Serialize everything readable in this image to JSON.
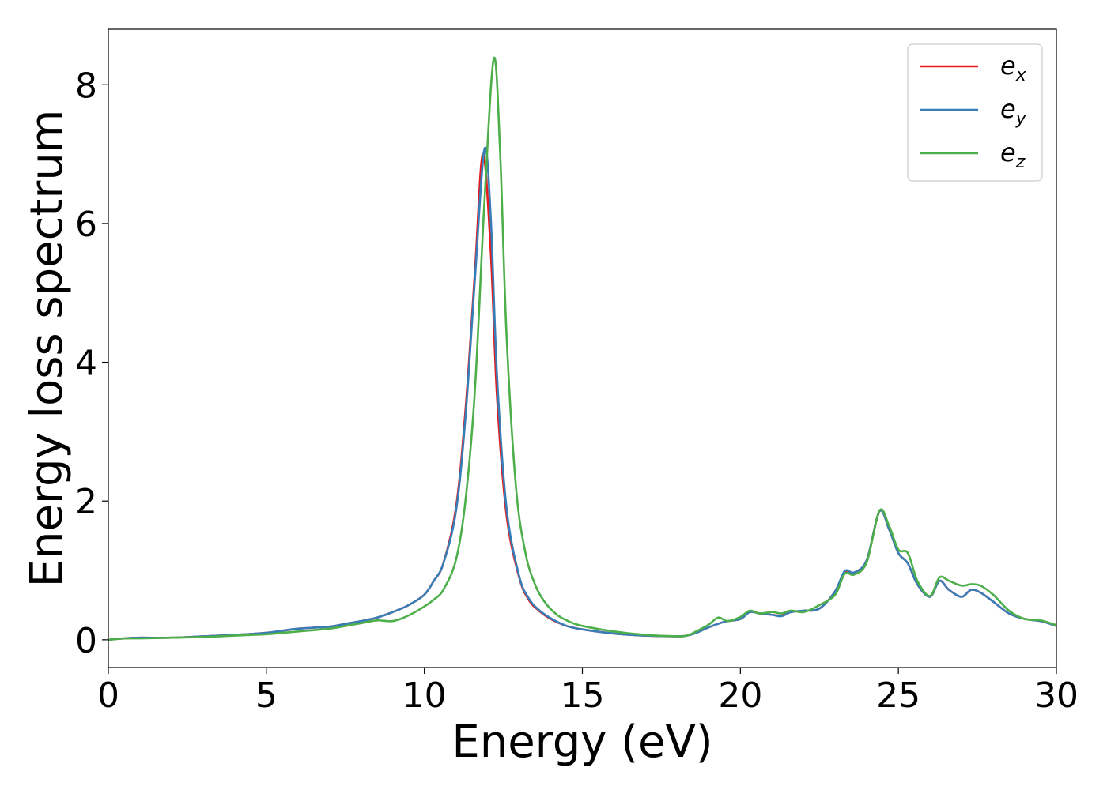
{
  "chart_data": {
    "type": "line",
    "xlabel": "Energy (eV)",
    "ylabel": "Energy loss spectrum",
    "xlim": [
      0,
      30
    ],
    "ylim": [
      -0.4,
      8.8
    ],
    "xticks": [
      0,
      5,
      10,
      15,
      20,
      25,
      30
    ],
    "xtick_labels": [
      "0",
      "5",
      "10",
      "15",
      "20",
      "25",
      "30"
    ],
    "yticks": [
      0,
      2,
      4,
      6,
      8
    ],
    "ytick_labels": [
      "0",
      "2",
      "4",
      "6",
      "8"
    ],
    "grid": false,
    "legend_position": "top-right",
    "series": [
      {
        "name": "e_x",
        "label_main": "e",
        "label_sub": "x",
        "color": "#e41a1c",
        "x": [
          0,
          0.5,
          1,
          2,
          3,
          4,
          5,
          5.5,
          6,
          7,
          7.5,
          8,
          8.5,
          9,
          9.5,
          10,
          10.3,
          10.6,
          11,
          11.3,
          11.6,
          11.85,
          12.1,
          12.3,
          12.6,
          13,
          13.3,
          13.6,
          14,
          14.5,
          15,
          16,
          17,
          18,
          18.3,
          18.6,
          19,
          19.5,
          20,
          20.3,
          20.6,
          21,
          21.3,
          21.6,
          22,
          22.5,
          23,
          23.3,
          23.6,
          24,
          24.4,
          24.7,
          25,
          25.3,
          25.6,
          26,
          26.3,
          26.6,
          27,
          27.3,
          27.6,
          28,
          28.5,
          29,
          29.5,
          30
        ],
        "y": [
          0.0,
          0.02,
          0.03,
          0.03,
          0.05,
          0.07,
          0.1,
          0.13,
          0.16,
          0.19,
          0.23,
          0.27,
          0.32,
          0.4,
          0.5,
          0.65,
          0.85,
          1.1,
          1.9,
          3.3,
          5.3,
          7.0,
          5.6,
          3.5,
          1.8,
          0.9,
          0.58,
          0.43,
          0.3,
          0.2,
          0.15,
          0.09,
          0.06,
          0.05,
          0.06,
          0.1,
          0.18,
          0.26,
          0.3,
          0.4,
          0.38,
          0.36,
          0.35,
          0.4,
          0.42,
          0.45,
          0.7,
          0.98,
          0.97,
          1.15,
          1.85,
          1.6,
          1.25,
          1.1,
          0.8,
          0.62,
          0.85,
          0.72,
          0.62,
          0.72,
          0.68,
          0.55,
          0.38,
          0.3,
          0.27,
          0.2
        ]
      },
      {
        "name": "e_y",
        "label_main": "e",
        "label_sub": "y",
        "color": "#377eb8",
        "x": [
          0,
          0.5,
          1,
          2,
          3,
          4,
          5,
          5.5,
          6,
          7,
          7.5,
          8,
          8.5,
          9,
          9.5,
          10,
          10.3,
          10.6,
          11,
          11.3,
          11.6,
          11.9,
          12.1,
          12.3,
          12.6,
          13,
          13.3,
          13.6,
          14,
          14.5,
          15,
          16,
          17,
          18,
          18.3,
          18.6,
          19,
          19.5,
          20,
          20.3,
          20.6,
          21,
          21.3,
          21.6,
          22,
          22.5,
          23,
          23.3,
          23.6,
          24,
          24.4,
          24.7,
          25,
          25.3,
          25.6,
          26,
          26.3,
          26.6,
          27,
          27.3,
          27.6,
          28,
          28.5,
          29,
          29.5,
          30
        ],
        "y": [
          0.0,
          0.02,
          0.03,
          0.03,
          0.05,
          0.07,
          0.1,
          0.13,
          0.16,
          0.19,
          0.23,
          0.27,
          0.32,
          0.4,
          0.5,
          0.65,
          0.85,
          1.1,
          1.85,
          3.2,
          5.2,
          7.07,
          6.1,
          3.8,
          1.9,
          0.92,
          0.6,
          0.44,
          0.31,
          0.2,
          0.15,
          0.09,
          0.06,
          0.05,
          0.06,
          0.1,
          0.18,
          0.26,
          0.3,
          0.4,
          0.38,
          0.36,
          0.34,
          0.4,
          0.42,
          0.45,
          0.7,
          0.99,
          0.97,
          1.15,
          1.85,
          1.6,
          1.25,
          1.1,
          0.8,
          0.62,
          0.85,
          0.72,
          0.62,
          0.72,
          0.68,
          0.55,
          0.38,
          0.3,
          0.27,
          0.2
        ]
      },
      {
        "name": "e_z",
        "label_main": "e",
        "label_sub": "z",
        "color": "#4daf4a",
        "x": [
          0,
          0.5,
          1,
          2,
          3,
          4,
          5,
          5.5,
          6,
          7,
          7.5,
          8,
          8.5,
          9,
          9.5,
          10,
          10.3,
          10.6,
          11,
          11.3,
          11.6,
          11.9,
          12.2,
          12.4,
          12.6,
          12.9,
          13.2,
          13.5,
          13.8,
          14.2,
          14.6,
          15,
          16,
          17,
          18,
          18.3,
          18.6,
          19,
          19.3,
          19.6,
          20,
          20.3,
          20.6,
          21,
          21.3,
          21.6,
          22,
          22.5,
          23,
          23.3,
          23.6,
          24,
          24.4,
          24.7,
          25,
          25.3,
          25.6,
          26,
          26.3,
          26.6,
          27,
          27.3,
          27.6,
          28,
          28.5,
          29,
          29.5,
          30
        ],
        "y": [
          0.0,
          0.02,
          0.02,
          0.03,
          0.04,
          0.06,
          0.08,
          0.1,
          0.12,
          0.16,
          0.2,
          0.24,
          0.28,
          0.27,
          0.35,
          0.48,
          0.58,
          0.72,
          1.15,
          2.0,
          3.6,
          6.3,
          8.38,
          7.0,
          4.4,
          2.2,
          1.25,
          0.8,
          0.55,
          0.36,
          0.26,
          0.2,
          0.12,
          0.07,
          0.05,
          0.06,
          0.12,
          0.22,
          0.32,
          0.27,
          0.33,
          0.42,
          0.38,
          0.4,
          0.38,
          0.42,
          0.4,
          0.5,
          0.65,
          0.95,
          0.94,
          1.12,
          1.86,
          1.65,
          1.3,
          1.25,
          0.85,
          0.63,
          0.9,
          0.85,
          0.78,
          0.8,
          0.78,
          0.65,
          0.42,
          0.3,
          0.28,
          0.21
        ]
      }
    ]
  }
}
